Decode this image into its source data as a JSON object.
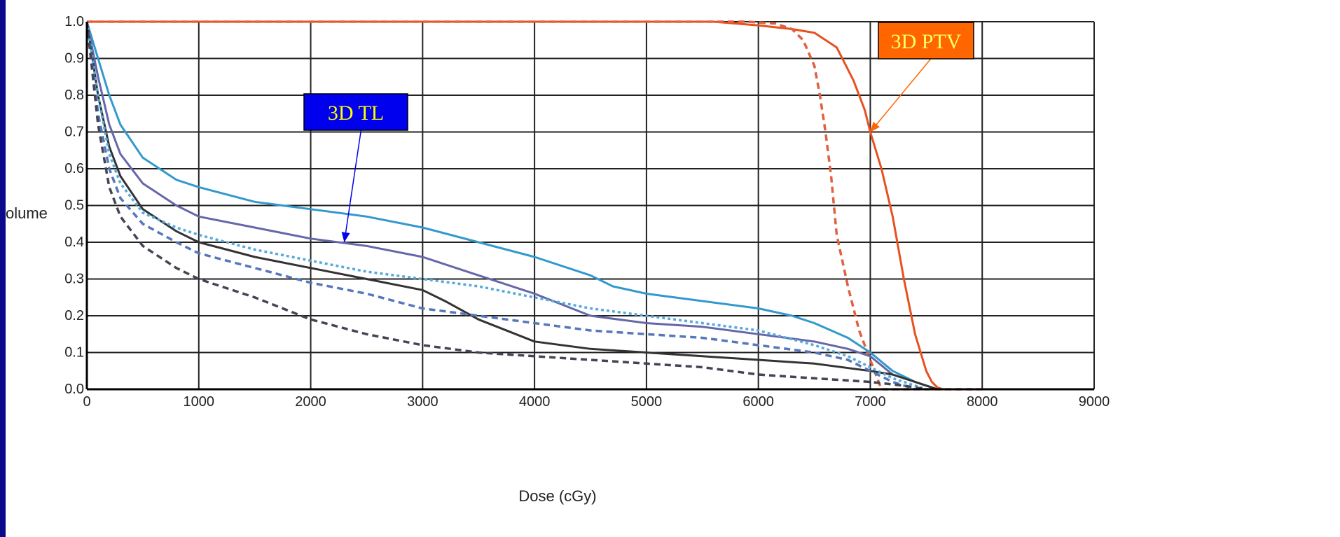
{
  "chart_data": {
    "type": "line",
    "xlabel": "Dose (cGy)",
    "ylabel": "olume",
    "xlim": [
      0,
      9000
    ],
    "ylim": [
      0,
      1.0
    ],
    "x_ticks": [
      "0",
      "1000",
      "2000",
      "3000",
      "4000",
      "5000",
      "6000",
      "7000",
      "8000",
      "9000"
    ],
    "y_ticks": [
      "0.0",
      "0.1",
      "0.2",
      "0.3",
      "0.4",
      "0.5",
      "0.6",
      "0.7",
      "0.8",
      "0.9",
      "1.0"
    ],
    "grid": true,
    "annotations": [
      {
        "text": "3D TL",
        "bg": "#0000ee",
        "fg": "#ffff00",
        "border": "#000000",
        "target": [
          2300,
          0.4
        ]
      },
      {
        "text": "3D PTV",
        "bg": "#ff6600",
        "fg": "#ffff66",
        "border": "#000000",
        "target": [
          7000,
          0.7
        ]
      }
    ],
    "series": [
      {
        "color": "#e85020",
        "style": "solid",
        "x": [
          0,
          5600,
          6000,
          6300,
          6500,
          6700,
          6850,
          6950,
          7000,
          7100,
          7200,
          7300,
          7400,
          7500,
          7550,
          7600,
          7650,
          8000
        ],
        "y": [
          1.0,
          1.0,
          0.99,
          0.98,
          0.97,
          0.93,
          0.84,
          0.76,
          0.7,
          0.6,
          0.47,
          0.3,
          0.15,
          0.05,
          0.02,
          0.005,
          0.0,
          0.0
        ]
      },
      {
        "color": "#e06040",
        "style": "dashed",
        "x": [
          0,
          5500,
          5900,
          6150,
          6300,
          6400,
          6500,
          6550,
          6600,
          6650,
          6700,
          6800,
          6900,
          7000,
          7050,
          7100,
          8000
        ],
        "y": [
          1.0,
          1.0,
          1.0,
          0.995,
          0.98,
          0.95,
          0.88,
          0.8,
          0.7,
          0.58,
          0.42,
          0.28,
          0.16,
          0.08,
          0.04,
          0.0,
          0.0
        ]
      },
      {
        "color": "#3399cc",
        "style": "solid",
        "x": [
          0,
          100,
          200,
          300,
          500,
          800,
          1000,
          1500,
          2000,
          2500,
          3000,
          3500,
          4000,
          4500,
          4700,
          5000,
          5500,
          6000,
          6300,
          6500,
          6800,
          7000,
          7200,
          7400,
          7500,
          7600
        ],
        "y": [
          1.0,
          0.9,
          0.8,
          0.72,
          0.63,
          0.57,
          0.55,
          0.51,
          0.49,
          0.47,
          0.44,
          0.4,
          0.36,
          0.31,
          0.28,
          0.26,
          0.24,
          0.22,
          0.2,
          0.18,
          0.14,
          0.1,
          0.05,
          0.02,
          0.01,
          0.0
        ]
      },
      {
        "color": "#6666aa",
        "style": "solid",
        "x": [
          0,
          100,
          200,
          300,
          500,
          800,
          1000,
          1500,
          2000,
          2500,
          3000,
          3500,
          4000,
          4500,
          5000,
          5500,
          6000,
          6500,
          6800,
          7000,
          7200,
          7400,
          7600
        ],
        "y": [
          1.0,
          0.85,
          0.72,
          0.64,
          0.56,
          0.5,
          0.47,
          0.44,
          0.41,
          0.39,
          0.36,
          0.31,
          0.26,
          0.2,
          0.18,
          0.17,
          0.15,
          0.13,
          0.11,
          0.09,
          0.04,
          0.02,
          0.0
        ]
      },
      {
        "color": "#333333",
        "style": "solid",
        "x": [
          0,
          100,
          200,
          300,
          500,
          800,
          1000,
          1500,
          2000,
          2500,
          3000,
          3200,
          3500,
          4000,
          4500,
          5000,
          5500,
          6000,
          6500,
          7000,
          7200,
          7400,
          7600
        ],
        "y": [
          1.0,
          0.8,
          0.66,
          0.58,
          0.49,
          0.43,
          0.4,
          0.36,
          0.33,
          0.3,
          0.27,
          0.24,
          0.19,
          0.13,
          0.11,
          0.1,
          0.09,
          0.08,
          0.07,
          0.05,
          0.04,
          0.02,
          0.0
        ]
      },
      {
        "color": "#55aadd",
        "style": "dotted",
        "x": [
          0,
          100,
          200,
          300,
          500,
          800,
          1000,
          1500,
          2000,
          2500,
          3000,
          3500,
          4000,
          4500,
          5000,
          5500,
          6000,
          6500,
          6800,
          7000,
          7200,
          7500
        ],
        "y": [
          1.0,
          0.8,
          0.64,
          0.56,
          0.48,
          0.44,
          0.42,
          0.38,
          0.35,
          0.32,
          0.3,
          0.28,
          0.25,
          0.22,
          0.2,
          0.18,
          0.16,
          0.12,
          0.09,
          0.06,
          0.03,
          0.0
        ]
      },
      {
        "color": "#5577bb",
        "style": "dashed",
        "x": [
          0,
          100,
          200,
          300,
          500,
          800,
          1000,
          1500,
          2000,
          2500,
          3000,
          3500,
          4000,
          4500,
          5000,
          5500,
          6000,
          6500,
          6800,
          7000,
          7200,
          7400
        ],
        "y": [
          1.0,
          0.75,
          0.6,
          0.52,
          0.45,
          0.4,
          0.37,
          0.33,
          0.29,
          0.26,
          0.22,
          0.2,
          0.18,
          0.16,
          0.15,
          0.14,
          0.12,
          0.1,
          0.08,
          0.05,
          0.02,
          0.0
        ]
      },
      {
        "color": "#444455",
        "style": "dashed",
        "x": [
          0,
          100,
          200,
          300,
          500,
          800,
          1000,
          1500,
          2000,
          2500,
          3000,
          3500,
          4000,
          4500,
          5000,
          5500,
          6000,
          6500,
          7000,
          7300,
          7500
        ],
        "y": [
          1.0,
          0.72,
          0.55,
          0.47,
          0.39,
          0.33,
          0.3,
          0.25,
          0.19,
          0.15,
          0.12,
          0.1,
          0.09,
          0.08,
          0.07,
          0.06,
          0.04,
          0.03,
          0.02,
          0.01,
          0.0
        ]
      }
    ]
  }
}
